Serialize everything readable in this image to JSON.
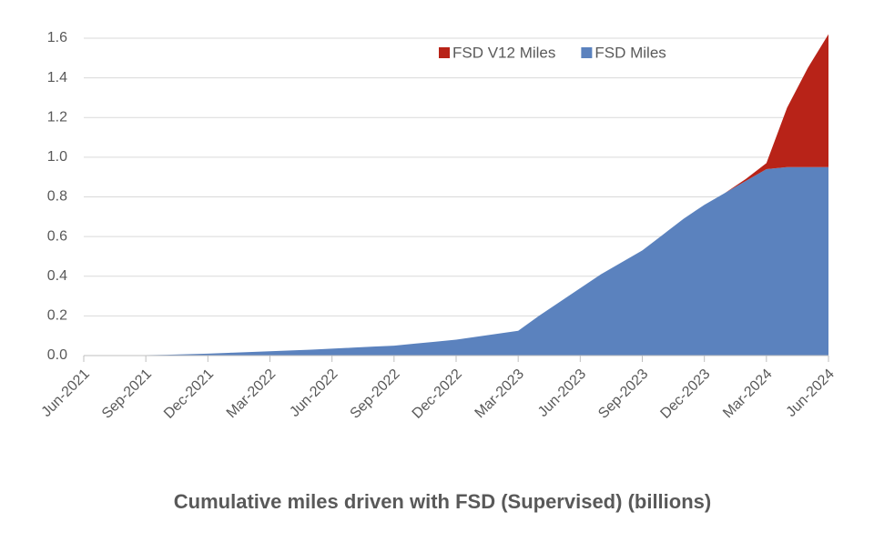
{
  "chart_data": {
    "type": "stacked-area",
    "title": "Cumulative miles driven with FSD (Supervised) (billions)",
    "categories": [
      "Jun-2021",
      null,
      null,
      "Sep-2021",
      null,
      null,
      "Dec-2021",
      null,
      null,
      "Mar-2022",
      null,
      null,
      "Jun-2022",
      null,
      null,
      "Sep-2022",
      null,
      null,
      "Dec-2022",
      null,
      null,
      "Mar-2023",
      null,
      null,
      "Jun-2023",
      null,
      null,
      "Sep-2023",
      null,
      null,
      "Dec-2023",
      null,
      null,
      "Mar-2024",
      null,
      null,
      "Jun-2024"
    ],
    "series": [
      {
        "name": "FSD Miles",
        "color": "#5b82be",
        "values": [
          0,
          0,
          0,
          0.002,
          0.004,
          0.007,
          0.01,
          0.014,
          0.018,
          0.022,
          0.026,
          0.03,
          0.035,
          0.04,
          0.045,
          0.05,
          0.06,
          0.07,
          0.08,
          0.095,
          0.11,
          0.125,
          0.2,
          0.27,
          0.34,
          0.41,
          0.47,
          0.53,
          0.61,
          0.69,
          0.76,
          0.82,
          0.88,
          0.94,
          0.95,
          0.95,
          0.95
        ]
      },
      {
        "name": "FSD V12 Miles",
        "color": "#b82318",
        "values": [
          0,
          0,
          0,
          0,
          0,
          0,
          0,
          0,
          0,
          0,
          0,
          0,
          0,
          0,
          0,
          0,
          0,
          0,
          0,
          0,
          0,
          0,
          0,
          0,
          0,
          0,
          0,
          0,
          0,
          0,
          0,
          0,
          0.01,
          0.03,
          0.3,
          0.5,
          0.67
        ]
      }
    ],
    "legend_order": [
      1,
      0
    ],
    "legend": "upper right",
    "ylim": [
      0,
      1.6
    ],
    "yticks": [
      {
        "value": 0,
        "label": "0.0"
      },
      0.2,
      0.4,
      0.6,
      0.8,
      {
        "value": 1,
        "label": "1.0"
      },
      1.2,
      1.4,
      1.6
    ],
    "grid": true
  }
}
